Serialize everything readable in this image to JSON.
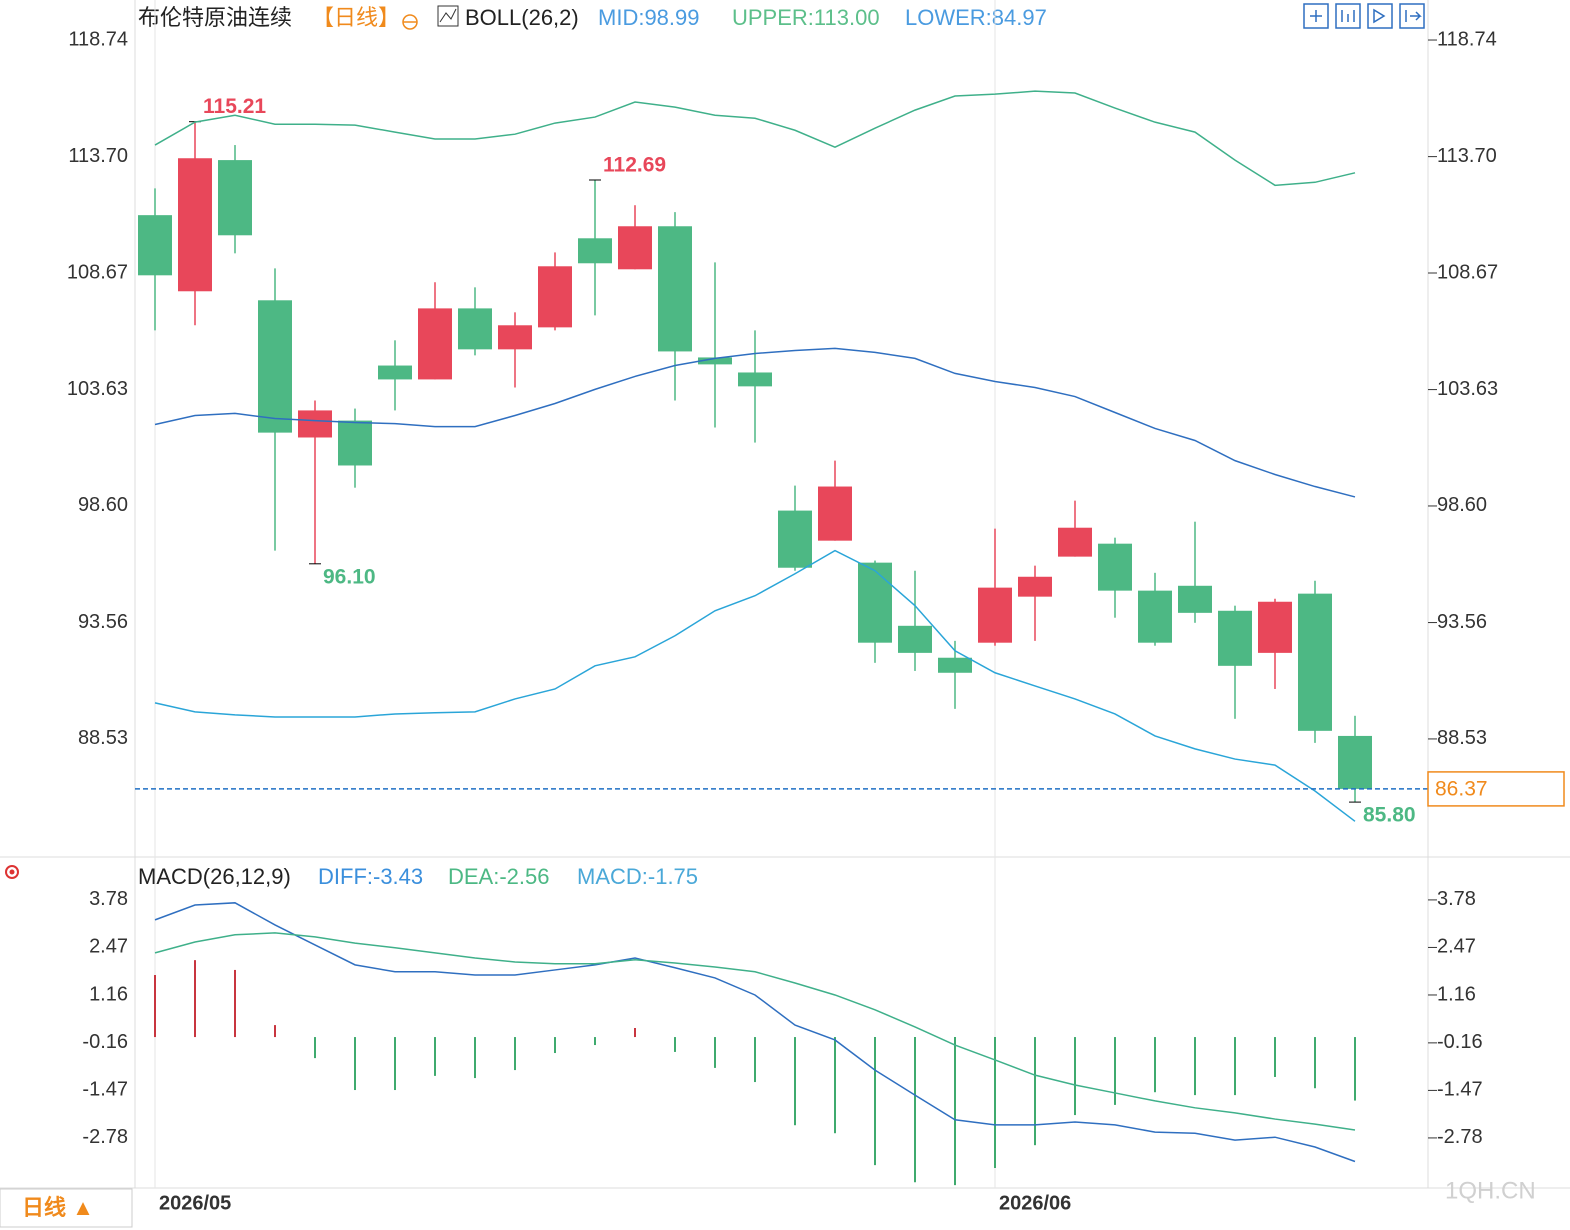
{
  "header": {
    "name": "布伦特原油连续",
    "period": "【日线】"
  },
  "chart_data": [
    {
      "type": "candlestick",
      "indicator": "BOLL(26,2)",
      "indicator_values": [
        "MID:98.99",
        "UPPER:113.00",
        "LOWER:84.97"
      ],
      "categories": [
        "2026/05",
        null,
        null,
        null,
        null,
        null,
        null,
        null,
        null,
        null,
        null,
        null,
        null,
        null,
        null,
        null,
        null,
        null,
        null,
        null,
        null,
        "2026/06",
        null,
        null,
        null,
        null,
        null,
        null,
        null,
        null,
        null
      ],
      "open": [
        111.17,
        107.88,
        113.55,
        107.49,
        101.56,
        102.29,
        104.67,
        104.07,
        107.14,
        105.37,
        106.32,
        110.17,
        108.83,
        110.69,
        105.02,
        104.37,
        98.4,
        97.1,
        96.15,
        93.42,
        92.04,
        92.69,
        94.68,
        96.41,
        96.97,
        94.94,
        95.15,
        94.07,
        92.25,
        94.81,
        88.66
      ],
      "high": [
        112.33,
        115.21,
        114.2,
        108.87,
        103.16,
        102.81,
        105.76,
        108.27,
        108.05,
        106.97,
        109.56,
        112.69,
        111.6,
        111.3,
        109.13,
        106.19,
        99.48,
        100.56,
        96.24,
        95.8,
        92.77,
        97.62,
        96.02,
        98.83,
        97.23,
        95.71,
        97.92,
        94.29,
        94.59,
        95.37,
        89.53
      ],
      "low": [
        106.19,
        106.41,
        109.52,
        96.67,
        96.1,
        99.39,
        102.73,
        104.07,
        105.11,
        103.72,
        106.19,
        106.84,
        108.83,
        103.16,
        101.99,
        101.34,
        95.8,
        97.1,
        91.82,
        91.47,
        89.83,
        92.56,
        92.77,
        96.41,
        93.77,
        92.56,
        93.55,
        89.4,
        90.69,
        88.36,
        85.8
      ],
      "close": [
        108.57,
        113.63,
        110.3,
        101.77,
        102.73,
        100.35,
        104.07,
        107.14,
        105.37,
        106.41,
        108.96,
        109.09,
        110.69,
        105.28,
        104.72,
        103.77,
        95.93,
        99.44,
        92.69,
        92.25,
        91.39,
        95.07,
        95.54,
        97.66,
        94.94,
        92.69,
        93.98,
        91.69,
        94.46,
        88.88,
        86.37
      ],
      "high_labels": [
        null,
        "115.21",
        null,
        null,
        null,
        null,
        null,
        null,
        null,
        null,
        null,
        "112.69",
        null,
        null,
        null,
        null,
        null,
        null,
        null,
        null,
        null,
        null,
        null,
        null,
        null,
        null,
        null,
        null,
        null,
        null,
        null
      ],
      "low_labels": [
        null,
        null,
        null,
        null,
        "96.10",
        null,
        null,
        null,
        null,
        null,
        null,
        null,
        null,
        null,
        null,
        null,
        null,
        null,
        null,
        null,
        null,
        null,
        null,
        null,
        null,
        null,
        null,
        null,
        null,
        null,
        "85.80"
      ],
      "up_color": "#e8475a",
      "down_color": "#4db884",
      "series": [
        {
          "name": "UPPER",
          "color": "#3fb08a",
          "values": [
            114.2,
            115.19,
            115.49,
            115.1,
            115.1,
            115.06,
            114.76,
            114.46,
            114.46,
            114.67,
            115.15,
            115.41,
            116.06,
            115.84,
            115.49,
            115.36,
            114.84,
            114.11,
            114.93,
            115.71,
            116.32,
            116.4,
            116.53,
            116.45,
            115.8,
            115.19,
            114.76,
            113.55,
            112.46,
            112.59,
            113.0
          ]
        },
        {
          "name": "MID",
          "color": "#2f6fc0",
          "values": [
            102.12,
            102.51,
            102.6,
            102.38,
            102.29,
            102.21,
            102.16,
            102.03,
            102.03,
            102.51,
            103.03,
            103.64,
            104.2,
            104.67,
            104.98,
            105.19,
            105.32,
            105.41,
            105.24,
            104.98,
            104.33,
            103.98,
            103.72,
            103.33,
            102.64,
            101.95,
            101.43,
            100.56,
            99.96,
            99.44,
            98.99
          ]
        },
        {
          "name": "LOWER",
          "color": "#2aa5d8",
          "values": [
            90.09,
            89.7,
            89.57,
            89.48,
            89.48,
            89.48,
            89.61,
            89.66,
            89.7,
            90.26,
            90.69,
            91.69,
            92.08,
            92.99,
            94.07,
            94.72,
            95.67,
            96.67,
            95.8,
            94.29,
            92.34,
            91.39,
            90.82,
            90.26,
            89.61,
            88.66,
            88.1,
            87.66,
            87.4,
            86.28,
            84.97
          ]
        }
      ],
      "ylim": [
        83.47,
        120.47
      ],
      "yticks": [
        118.74,
        {
          "value": 113.7,
          "label": "113.70"
        },
        108.67,
        103.63,
        {
          "value": 98.6,
          "label": "98.60"
        },
        93.56,
        88.53
      ]
    },
    {
      "type": "macd",
      "indicator": "MACD(26,12,9)",
      "indicator_values": [
        "DIFF:-3.43",
        "DEA:-2.56",
        "MACD:-1.75"
      ],
      "series": [
        {
          "name": "DIFF",
          "color": "#2f6fc0",
          "values": [
            3.23,
            3.64,
            3.7,
            3.09,
            2.54,
            1.99,
            1.8,
            1.8,
            1.71,
            1.71,
            1.85,
            1.99,
            2.18,
            1.91,
            1.63,
            1.16,
            0.33,
            -0.08,
            -0.91,
            -1.6,
            -2.28,
            -2.42,
            -2.42,
            -2.34,
            -2.42,
            -2.62,
            -2.65,
            -2.84,
            -2.76,
            -3.03,
            -3.43
          ]
        },
        {
          "name": "DEA",
          "color": "#3fb08a",
          "values": [
            2.32,
            2.62,
            2.82,
            2.87,
            2.76,
            2.59,
            2.46,
            2.32,
            2.18,
            2.07,
            2.02,
            2.02,
            2.13,
            2.04,
            1.93,
            1.8,
            1.49,
            1.16,
            0.75,
            0.28,
            -0.22,
            -0.63,
            -1.05,
            -1.32,
            -1.54,
            -1.76,
            -1.95,
            -2.09,
            -2.26,
            -2.4,
            -2.56
          ]
        }
      ],
      "histogram": {
        "name": "MACD",
        "up_color": "#c8353f",
        "down_color": "#3faa6e",
        "values": [
          1.71,
          2.12,
          1.85,
          0.33,
          -0.58,
          -1.46,
          -1.46,
          -1.07,
          -1.13,
          -0.91,
          -0.44,
          -0.22,
          0.25,
          -0.41,
          -0.85,
          -1.24,
          -2.43,
          -2.65,
          -3.53,
          -4.0,
          -4.08,
          -3.61,
          -2.98,
          -2.15,
          -1.87,
          -1.52,
          -1.6,
          -1.6,
          -1.1,
          -1.41,
          -1.75
        ]
      },
      "ylim": [
        -4.16,
        4.88
      ],
      "yticks": [
        3.78,
        2.47,
        1.16,
        -0.16,
        -1.47,
        -2.78
      ]
    }
  ],
  "period_button": "日线 ▲",
  "watermark": "1QH.CN"
}
